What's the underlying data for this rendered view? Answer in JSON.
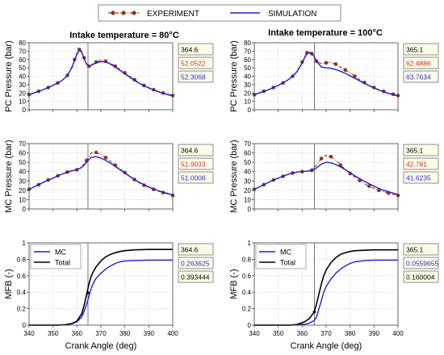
{
  "legend": {
    "experiment_label": "EXPERIMENT",
    "simulation_label": "SIMULATION",
    "experiment_color": "#b22222",
    "experiment_marker_color": "#8b3a1a",
    "simulation_color": "#1f1fd0"
  },
  "columns": [
    {
      "title": "Intake temperature = 80°C"
    },
    {
      "title": "Intake temperature = 100°C"
    }
  ],
  "chart_data": [
    {
      "id": "pc-80",
      "type": "line",
      "col": 0,
      "row": 0,
      "xlabel": "",
      "ylabel": "PC Pressure (bar)",
      "xlim": [
        340,
        400
      ],
      "ylim": [
        0,
        80
      ],
      "yticks": [
        0,
        10,
        20,
        30,
        40,
        50,
        60,
        70,
        80
      ],
      "xticks": [
        340,
        350,
        360,
        370,
        380,
        390,
        400
      ],
      "show_xtick_labels": false,
      "cursor_x": 364.6,
      "readouts": [
        {
          "value": "364.6",
          "color": "#000000"
        },
        {
          "value": "52.0522",
          "color": "#c0392b"
        },
        {
          "value": "52.3068",
          "color": "#2b2bd0"
        }
      ],
      "series": [
        {
          "name": "EXPERIMENT",
          "style": "experiment",
          "x": [
            340,
            342,
            344,
            346,
            348,
            350,
            352,
            354,
            356,
            358,
            359,
            360,
            361,
            362,
            363,
            364,
            365,
            366,
            368,
            370,
            372,
            374,
            376,
            378,
            380,
            382,
            384,
            386,
            388,
            390,
            392,
            394,
            396,
            398,
            400
          ],
          "y": [
            18,
            20,
            22,
            24,
            26.5,
            29,
            32,
            35.5,
            41,
            52,
            60,
            68,
            72,
            70,
            62,
            55,
            52,
            53.5,
            57,
            59,
            58,
            55.5,
            52,
            48,
            44,
            40,
            36,
            32,
            29,
            26.5,
            24,
            22,
            20,
            18.5,
            17
          ]
        },
        {
          "name": "SIMULATION",
          "style": "simulation",
          "x": [
            340,
            342,
            344,
            346,
            348,
            350,
            352,
            354,
            356,
            358,
            359,
            360,
            361,
            362,
            363,
            364,
            365,
            366,
            368,
            370,
            372,
            374,
            376,
            378,
            380,
            382,
            384,
            386,
            388,
            390,
            392,
            394,
            396,
            398,
            400
          ],
          "y": [
            18,
            20,
            22,
            24,
            26.5,
            29,
            32,
            35.5,
            41,
            51,
            59,
            66.5,
            71,
            68.5,
            61,
            54.5,
            52,
            53,
            56,
            57.5,
            57,
            54.5,
            51,
            47,
            43,
            39,
            35,
            31.5,
            28.5,
            26,
            23.5,
            21.5,
            19.5,
            18,
            16.5
          ]
        }
      ]
    },
    {
      "id": "pc-100",
      "type": "line",
      "col": 1,
      "row": 0,
      "xlabel": "",
      "ylabel": "PC Pressure (bar)",
      "xlim": [
        340,
        400
      ],
      "ylim": [
        0,
        80
      ],
      "yticks": [
        0,
        10,
        20,
        30,
        40,
        50,
        60,
        70,
        80
      ],
      "xticks": [
        340,
        350,
        360,
        370,
        380,
        390,
        400
      ],
      "show_xtick_labels": false,
      "cursor_x": 365.1,
      "readouts": [
        {
          "value": "365.1",
          "color": "#000000"
        },
        {
          "value": "62.4886",
          "color": "#c0392b"
        },
        {
          "value": "63.7634",
          "color": "#2b2bd0"
        }
      ],
      "series": [
        {
          "name": "EXPERIMENT",
          "style": "experiment",
          "x": [
            340,
            342,
            344,
            346,
            348,
            350,
            352,
            354,
            356,
            358,
            360,
            361,
            362,
            363,
            364,
            365,
            366,
            368,
            370,
            372,
            374,
            376,
            378,
            380,
            382,
            384,
            386,
            388,
            390,
            392,
            394,
            396,
            398,
            400
          ],
          "y": [
            18,
            20,
            22,
            24,
            26.5,
            29,
            32,
            35.5,
            40,
            47,
            57,
            63,
            68,
            69,
            67,
            62.5,
            58,
            55,
            56,
            56.5,
            54.5,
            51,
            47.5,
            44,
            40,
            36,
            32.5,
            29,
            26.5,
            24,
            22,
            20,
            18.5,
            17
          ]
        },
        {
          "name": "SIMULATION",
          "style": "simulation",
          "x": [
            340,
            342,
            344,
            346,
            348,
            350,
            352,
            354,
            356,
            358,
            360,
            361,
            362,
            363,
            364,
            365,
            366,
            368,
            370,
            372,
            374,
            376,
            378,
            380,
            382,
            384,
            386,
            388,
            390,
            392,
            394,
            396,
            398,
            400
          ],
          "y": [
            18,
            20,
            22,
            24,
            26.5,
            29,
            32,
            35.5,
            40,
            46,
            56,
            62,
            67,
            68,
            67,
            63.5,
            58,
            51,
            50,
            49.5,
            48,
            46,
            43.5,
            40.5,
            37.5,
            34.5,
            31.5,
            28.5,
            26,
            23.5,
            21.5,
            19.5,
            18,
            16.5
          ]
        }
      ]
    },
    {
      "id": "mc-80",
      "type": "line",
      "col": 0,
      "row": 1,
      "xlabel": "",
      "ylabel": "MC Pressure (bar)",
      "xlim": [
        340,
        400
      ],
      "ylim": [
        0,
        70
      ],
      "yticks": [
        0,
        10,
        20,
        30,
        40,
        50,
        60,
        70
      ],
      "xticks": [
        340,
        350,
        360,
        370,
        380,
        390,
        400
      ],
      "show_xtick_labels": false,
      "cursor_x": 364.6,
      "readouts": [
        {
          "value": "364.6",
          "color": "#000000"
        },
        {
          "value": "51.9033",
          "color": "#c0392b"
        },
        {
          "value": "51.0006",
          "color": "#2b2bd0"
        }
      ],
      "series": [
        {
          "name": "EXPERIMENT",
          "style": "experiment",
          "x": [
            340,
            342,
            344,
            346,
            348,
            350,
            352,
            354,
            356,
            358,
            360,
            362,
            364,
            366,
            368,
            370,
            372,
            374,
            376,
            378,
            380,
            382,
            384,
            386,
            388,
            390,
            392,
            394,
            396,
            398,
            400
          ],
          "y": [
            21,
            23.5,
            26,
            28.5,
            31,
            33,
            35.5,
            37.5,
            39.5,
            41,
            42,
            45,
            52,
            60,
            60.5,
            58.5,
            55,
            51,
            47,
            43,
            39,
            35,
            31.5,
            28,
            25.5,
            23,
            21,
            19,
            17.5,
            16,
            14.5
          ]
        },
        {
          "name": "SIMULATION",
          "style": "simulation",
          "x": [
            340,
            342,
            344,
            346,
            348,
            350,
            352,
            354,
            356,
            358,
            360,
            362,
            364,
            366,
            368,
            370,
            372,
            374,
            376,
            378,
            380,
            382,
            384,
            386,
            388,
            390,
            392,
            394,
            396,
            398,
            400
          ],
          "y": [
            21,
            23.5,
            26,
            28.5,
            31,
            33,
            35.5,
            37.5,
            39.5,
            41,
            42,
            44.5,
            50,
            55.5,
            56,
            54.5,
            52,
            49,
            45.5,
            42,
            38.5,
            35,
            31.5,
            28.5,
            26,
            23.5,
            21.5,
            19.5,
            18,
            16.5,
            15
          ]
        }
      ]
    },
    {
      "id": "mc-100",
      "type": "line",
      "col": 1,
      "row": 1,
      "xlabel": "",
      "ylabel": "MC Pressure (bar)",
      "xlim": [
        340,
        400
      ],
      "ylim": [
        0,
        70
      ],
      "yticks": [
        0,
        10,
        20,
        30,
        40,
        50,
        60,
        70
      ],
      "xticks": [
        340,
        350,
        360,
        370,
        380,
        390,
        400
      ],
      "show_xtick_labels": false,
      "cursor_x": 365.1,
      "readouts": [
        {
          "value": "365.1",
          "color": "#000000"
        },
        {
          "value": "42.781",
          "color": "#c0392b"
        },
        {
          "value": "41.6235",
          "color": "#2b2bd0"
        }
      ],
      "series": [
        {
          "name": "EXPERIMENT",
          "style": "experiment",
          "x": [
            340,
            342,
            344,
            346,
            348,
            350,
            352,
            354,
            356,
            358,
            360,
            362,
            364,
            366,
            368,
            370,
            372,
            374,
            376,
            378,
            380,
            382,
            384,
            386,
            388,
            390,
            392,
            394,
            396,
            398,
            400
          ],
          "y": [
            21,
            23.5,
            26,
            28.5,
            31,
            33,
            35,
            37,
            38.5,
            39.5,
            40,
            40.5,
            41.5,
            47,
            54,
            57.5,
            56,
            52,
            47,
            42.5,
            38,
            34,
            30.5,
            27,
            24.5,
            22,
            20,
            18.5,
            17,
            15.5,
            14.5
          ]
        },
        {
          "name": "SIMULATION",
          "style": "simulation",
          "x": [
            340,
            342,
            344,
            346,
            348,
            350,
            352,
            354,
            356,
            358,
            360,
            362,
            364,
            366,
            368,
            370,
            372,
            374,
            376,
            378,
            380,
            382,
            384,
            386,
            388,
            390,
            392,
            394,
            396,
            398,
            400
          ],
          "y": [
            21,
            23.5,
            26,
            28.5,
            31,
            33,
            35,
            37,
            38.5,
            39.5,
            40,
            40.5,
            41,
            44,
            48,
            50,
            49.5,
            47.5,
            45,
            42,
            39,
            35.5,
            32.5,
            29.5,
            27,
            24.5,
            22,
            20,
            18.5,
            17,
            15.5
          ]
        }
      ]
    },
    {
      "id": "mfb-80",
      "type": "line",
      "col": 0,
      "row": 2,
      "xlabel": "Crank Angle (deg)",
      "ylabel": "MFB (-)",
      "xlim": [
        340,
        400
      ],
      "ylim": [
        0,
        1
      ],
      "yticks": [
        0,
        0.2,
        0.4,
        0.6,
        0.8,
        1
      ],
      "xticks": [
        340,
        350,
        360,
        370,
        380,
        390,
        400
      ],
      "show_xtick_labels": true,
      "cursor_x": 364.6,
      "readouts": [
        {
          "value": "364.6",
          "color": "#000000"
        },
        {
          "value": "0.263625",
          "color": "#2b2bd0"
        },
        {
          "value": "0.393444",
          "color": "#000000"
        }
      ],
      "legend": [
        {
          "name": "MC",
          "color": "#1f1fd0"
        },
        {
          "name": "Total",
          "color": "#000000"
        }
      ],
      "series": [
        {
          "name": "MC",
          "style": "mc",
          "x": [
            340,
            352,
            355,
            358,
            360,
            362,
            363,
            364,
            365,
            366,
            367,
            368,
            370,
            372,
            374,
            376,
            378,
            380,
            384,
            390,
            400
          ],
          "y": [
            0,
            0,
            0.005,
            0.02,
            0.04,
            0.1,
            0.17,
            0.25,
            0.35,
            0.45,
            0.52,
            0.57,
            0.63,
            0.68,
            0.72,
            0.75,
            0.77,
            0.78,
            0.785,
            0.79,
            0.79
          ]
        },
        {
          "name": "Total",
          "style": "total",
          "x": [
            340,
            352,
            355,
            358,
            360,
            362,
            363,
            364,
            365,
            366,
            367,
            368,
            370,
            372,
            374,
            376,
            378,
            380,
            384,
            390,
            400
          ],
          "y": [
            0,
            0,
            0.005,
            0.02,
            0.05,
            0.14,
            0.24,
            0.37,
            0.5,
            0.6,
            0.66,
            0.71,
            0.78,
            0.83,
            0.86,
            0.88,
            0.895,
            0.905,
            0.915,
            0.92,
            0.92
          ]
        }
      ]
    },
    {
      "id": "mfb-100",
      "type": "line",
      "col": 1,
      "row": 2,
      "xlabel": "Crank Angle (deg)",
      "ylabel": "MFB (-)",
      "xlim": [
        340,
        400
      ],
      "ylim": [
        0,
        1
      ],
      "yticks": [
        0,
        0.2,
        0.4,
        0.6,
        0.8,
        1
      ],
      "xticks": [
        340,
        350,
        360,
        370,
        380,
        390,
        400
      ],
      "show_xtick_labels": true,
      "cursor_x": 365.1,
      "readouts": [
        {
          "value": "365.1",
          "color": "#000000"
        },
        {
          "value": "0.0559655",
          "color": "#2b2bd0"
        },
        {
          "value": "0.160004",
          "color": "#000000"
        }
      ],
      "legend": [
        {
          "name": "MC",
          "color": "#1f1fd0"
        },
        {
          "name": "Total",
          "color": "#000000"
        }
      ],
      "series": [
        {
          "name": "MC",
          "style": "mc",
          "x": [
            340,
            355,
            358,
            361,
            363,
            365,
            366,
            367,
            368,
            369,
            370,
            372,
            374,
            376,
            378,
            380,
            382,
            386,
            390,
            400
          ],
          "y": [
            0,
            0,
            0.005,
            0.01,
            0.025,
            0.055,
            0.1,
            0.2,
            0.3,
            0.4,
            0.47,
            0.56,
            0.63,
            0.68,
            0.72,
            0.75,
            0.77,
            0.785,
            0.79,
            0.79
          ]
        },
        {
          "name": "Total",
          "style": "total",
          "x": [
            340,
            355,
            358,
            361,
            363,
            365,
            366,
            367,
            368,
            369,
            370,
            372,
            374,
            376,
            378,
            380,
            382,
            386,
            390,
            400
          ],
          "y": [
            0,
            0,
            0.01,
            0.04,
            0.08,
            0.16,
            0.26,
            0.38,
            0.5,
            0.6,
            0.67,
            0.76,
            0.82,
            0.86,
            0.88,
            0.895,
            0.905,
            0.91,
            0.915,
            0.915
          ]
        }
      ]
    }
  ]
}
